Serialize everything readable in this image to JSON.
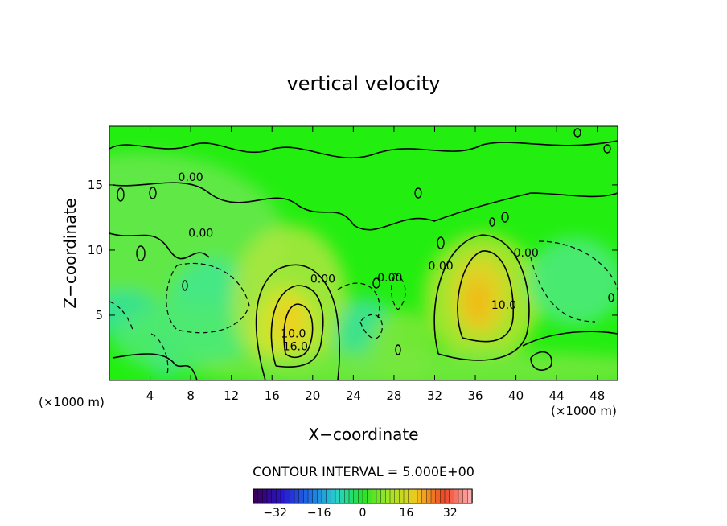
{
  "chart_data": {
    "type": "heatmap",
    "title": "vertical velocity",
    "xlabel": "X−coordinate",
    "ylabel": "Z−coordinate",
    "x_unit_label": "(×1000 m)",
    "x_unit_label_right": "(×1000 m)",
    "xlim": [
      0,
      50
    ],
    "ylim": [
      0,
      19.5
    ],
    "x_ticks": [
      4,
      8,
      12,
      16,
      20,
      24,
      28,
      32,
      36,
      40,
      44,
      48
    ],
    "x_tick_labels": [
      "4",
      "8",
      "12",
      "16",
      "20",
      "24",
      "28",
      "32",
      "36",
      "40",
      "44",
      "48"
    ],
    "y_ticks": [
      5,
      10,
      15
    ],
    "y_tick_labels": [
      "5",
      "10",
      "15"
    ],
    "contour_interval_text": "CONTOUR INTERVAL = 5.000E+00",
    "contour_labels": [
      {
        "text": "0.00",
        "x": 8.0,
        "y": 15.3
      },
      {
        "text": "0.00",
        "x": 9.0,
        "y": 11.0
      },
      {
        "text": "0.00",
        "x": 21.0,
        "y": 7.5
      },
      {
        "text": "0.00",
        "x": 27.6,
        "y": 7.6
      },
      {
        "text": "0.00",
        "x": 32.6,
        "y": 8.5
      },
      {
        "text": "0.00",
        "x": 41.0,
        "y": 9.5
      },
      {
        "text": "10.0",
        "x": 38.8,
        "y": 5.5
      },
      {
        "text": "10.0",
        "x": 18.1,
        "y": 3.3
      },
      {
        "text": "16.0",
        "x": 18.3,
        "y": 2.3
      }
    ],
    "colorbar": {
      "min": -40,
      "max": 40,
      "ticks": [
        -32,
        -16,
        0,
        16,
        32
      ],
      "tick_labels": [
        "−32",
        "−16",
        "0",
        "16",
        "32"
      ]
    },
    "grid": false,
    "legend": "colorbar-bottom"
  }
}
